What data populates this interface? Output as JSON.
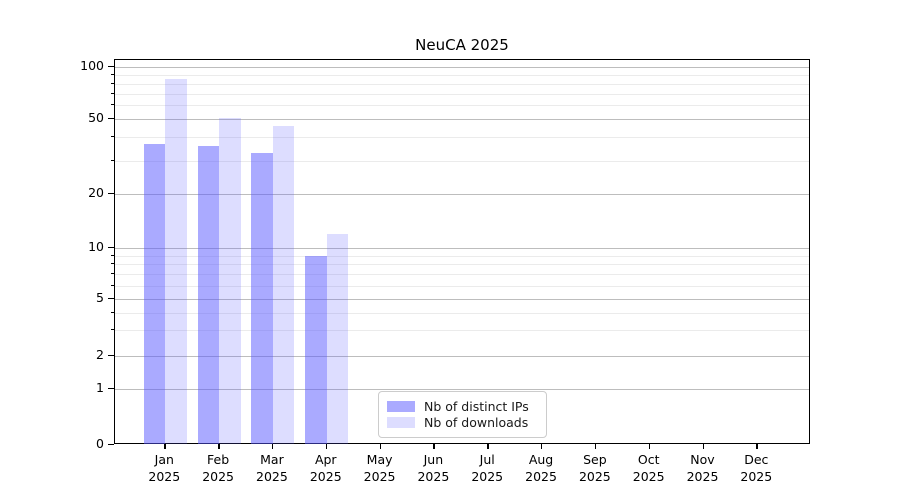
{
  "chart_data": {
    "type": "bar",
    "title": "NeuCA 2025",
    "scale": "symlog",
    "grid": "horizontal, major and minor",
    "legend_position": "bottom-center",
    "categories": [
      {
        "month": "Jan",
        "year": "2025"
      },
      {
        "month": "Feb",
        "year": "2025"
      },
      {
        "month": "Mar",
        "year": "2025"
      },
      {
        "month": "Apr",
        "year": "2025"
      },
      {
        "month": "May",
        "year": "2025"
      },
      {
        "month": "Jun",
        "year": "2025"
      },
      {
        "month": "Jul",
        "year": "2025"
      },
      {
        "month": "Aug",
        "year": "2025"
      },
      {
        "month": "Sep",
        "year": "2025"
      },
      {
        "month": "Oct",
        "year": "2025"
      },
      {
        "month": "Nov",
        "year": "2025"
      },
      {
        "month": "Dec",
        "year": "2025"
      }
    ],
    "series": [
      {
        "name": "Nb of distinct IPs",
        "color": "rgba(85,85,255,0.5)",
        "values": [
          37,
          36,
          33,
          9,
          0,
          0,
          0,
          0,
          0,
          0,
          0,
          0
        ]
      },
      {
        "name": "Nb of downloads",
        "color": "rgba(85,85,255,0.2)",
        "values": [
          85,
          51,
          46,
          12,
          0,
          0,
          0,
          0,
          0,
          0,
          0,
          0
        ]
      }
    ],
    "y_axis": {
      "ticks": [
        0,
        1,
        2,
        5,
        10,
        20,
        50,
        100
      ],
      "minor_ticks": [
        3,
        4,
        6,
        7,
        8,
        9,
        30,
        40,
        60,
        70,
        80,
        90
      ],
      "ylim": [
        0,
        109
      ]
    },
    "xlabel": "",
    "ylabel": ""
  },
  "colors": {
    "series_distinct_ips": "rgba(85,85,255,0.5)",
    "series_downloads": "rgba(85,85,255,0.2)",
    "grid_major": "#bdbdbd",
    "grid_minor": "#ebebeb",
    "axis": "#000000"
  }
}
